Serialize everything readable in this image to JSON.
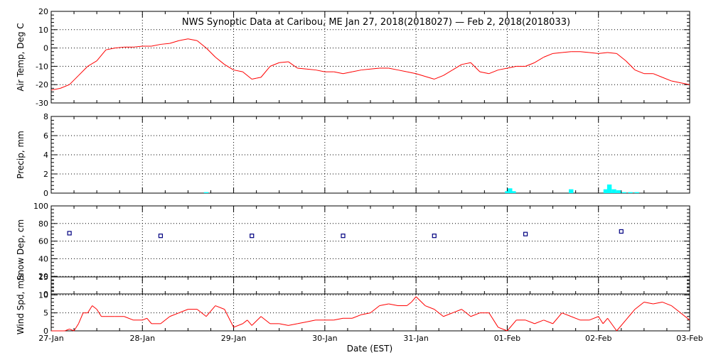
{
  "title": "NWS Synoptic Data at Caribou, ME   Jan 27, 2018(2018027) — Feb  2, 2018(2018033)",
  "xlabel": "Date (EST)",
  "x_tick_labels": [
    "27-Jan",
    "28-Jan",
    "29-Jan",
    "30-Jan",
    "31-Jan",
    "01-Feb",
    "02-Feb",
    "03-Feb"
  ],
  "colors": {
    "temp": "#ff0000",
    "precip": "#00ffff",
    "snow": "#000080",
    "wind": "#ff0000"
  },
  "chart_data": [
    {
      "type": "line",
      "ylabel": "Air Temp, Deg C",
      "ylim": [
        -30,
        20
      ],
      "yticks": [
        "-30",
        "-20",
        "-10",
        "0",
        "10",
        "20"
      ],
      "xlim": [
        0,
        7
      ],
      "grid": true,
      "x_days": [
        0,
        0.1,
        0.2,
        0.3,
        0.4,
        0.5,
        0.6,
        0.7,
        0.8,
        0.9,
        1.0,
        1.1,
        1.2,
        1.3,
        1.4,
        1.5,
        1.6,
        1.7,
        1.8,
        1.9,
        2.0,
        2.1,
        2.2,
        2.25,
        2.3,
        2.4,
        2.5,
        2.6,
        2.7,
        2.8,
        2.9,
        3.0,
        3.1,
        3.2,
        3.3,
        3.4,
        3.5,
        3.6,
        3.7,
        3.8,
        3.9,
        4.0,
        4.1,
        4.2,
        4.3,
        4.4,
        4.5,
        4.6,
        4.7,
        4.8,
        4.9,
        5.0,
        5.1,
        5.2,
        5.3,
        5.4,
        5.5,
        5.6,
        5.7,
        5.8,
        5.9,
        6.0,
        6.1,
        6.2,
        6.3,
        6.4,
        6.5,
        6.6,
        6.7,
        6.8,
        6.9,
        7.0
      ],
      "values": [
        -23,
        -22,
        -20,
        -15,
        -10,
        -7,
        -1,
        0,
        0.5,
        0.5,
        1,
        1,
        2,
        2.5,
        4,
        5,
        4,
        0,
        -5,
        -9,
        -12,
        -13,
        -17,
        -16.5,
        -16,
        -10,
        -8,
        -7.5,
        -11,
        -11.5,
        -12,
        -13,
        -13,
        -14,
        -13,
        -12,
        -11.5,
        -11,
        -11,
        -12,
        -13,
        -14,
        -15.5,
        -17,
        -15,
        -12,
        -9,
        -8,
        -13,
        -14,
        -12,
        -11,
        -10,
        -10,
        -8,
        -5,
        -3,
        -2.5,
        -2,
        -2,
        -2.5,
        -3,
        -2.5,
        -3,
        -7,
        -12,
        -14,
        -14,
        -16,
        -18,
        -19,
        -20
      ]
    },
    {
      "type": "bar",
      "ylabel": "Precip, mm",
      "ylim": [
        0,
        8
      ],
      "yticks": [
        "0",
        "2",
        "4",
        "6",
        "8"
      ],
      "xlim": [
        0,
        7
      ],
      "grid": true,
      "x_days": [
        1.7,
        5.0,
        5.03,
        5.07,
        5.7,
        6.08,
        6.12,
        6.17,
        6.22,
        6.28,
        6.35,
        6.42
      ],
      "values": [
        0.1,
        0.2,
        0.5,
        0.2,
        0.4,
        0.4,
        0.9,
        0.4,
        0.3,
        0.1,
        0.1,
        0.1
      ]
    },
    {
      "type": "scatter",
      "ylabel": "Snow Dep, cm",
      "ylim": [
        0,
        100
      ],
      "yticks": [
        "0",
        "20",
        "40",
        "60",
        "80",
        "100"
      ],
      "xlim": [
        0,
        7
      ],
      "grid": true,
      "x_days": [
        0.2,
        1.2,
        2.2,
        3.2,
        4.2,
        5.2,
        6.25
      ],
      "values": [
        69,
        66,
        66,
        66,
        66,
        68,
        71
      ]
    },
    {
      "type": "line",
      "ylabel": "Wind Spd, m/s",
      "ylim": [
        0,
        15
      ],
      "yticks": [
        "0",
        "5",
        "10",
        "15"
      ],
      "xlim": [
        0,
        7
      ],
      "grid": true,
      "x_days": [
        0,
        0.15,
        0.2,
        0.25,
        0.3,
        0.35,
        0.4,
        0.45,
        0.5,
        0.55,
        0.6,
        0.7,
        0.8,
        0.9,
        1.0,
        1.05,
        1.1,
        1.2,
        1.3,
        1.4,
        1.5,
        1.6,
        1.7,
        1.8,
        1.9,
        2.0,
        2.1,
        2.15,
        2.2,
        2.3,
        2.4,
        2.5,
        2.6,
        2.7,
        2.8,
        2.9,
        3.0,
        3.1,
        3.2,
        3.3,
        3.4,
        3.5,
        3.6,
        3.7,
        3.8,
        3.9,
        3.95,
        4.0,
        4.1,
        4.2,
        4.3,
        4.4,
        4.5,
        4.6,
        4.7,
        4.75,
        4.8,
        4.9,
        5.0,
        5.1,
        5.2,
        5.3,
        5.4,
        5.5,
        5.6,
        5.7,
        5.8,
        5.9,
        6.0,
        6.05,
        6.1,
        6.2,
        6.3,
        6.4,
        6.5,
        6.6,
        6.7,
        6.8,
        6.9,
        7.0
      ],
      "values": [
        0,
        0,
        0.5,
        0,
        2,
        5,
        5,
        7,
        6,
        4,
        4,
        4,
        4,
        3,
        3,
        3.5,
        2,
        2,
        4,
        5,
        6,
        6,
        4,
        7,
        6,
        1,
        2,
        3,
        1.5,
        4,
        2,
        2,
        1.5,
        2,
        2.5,
        3,
        3,
        3,
        3.5,
        3.5,
        4.5,
        5,
        7,
        7.5,
        7,
        7,
        8,
        9.5,
        7,
        6,
        4,
        5,
        6,
        4,
        5,
        5,
        5,
        1,
        0,
        3,
        3,
        2,
        3,
        2,
        5,
        4,
        3,
        3,
        4,
        2,
        3.5,
        0,
        3,
        6,
        8,
        7.5,
        8,
        7,
        5,
        3
      ]
    }
  ]
}
